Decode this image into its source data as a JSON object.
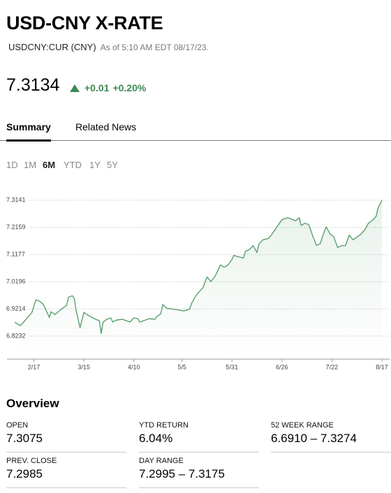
{
  "header": {
    "title": "USD-CNY X-RATE",
    "symbol": "USDCNY:CUR (CNY)",
    "as_of": "As of 5:10 AM EDT 08/17/23."
  },
  "quote": {
    "price": "7.3134",
    "change": "+0.01",
    "change_percent": "+0.20%"
  },
  "tabs": {
    "items": [
      "Summary",
      "Related News"
    ],
    "selected": "Summary"
  },
  "ranges": {
    "items": [
      "1D",
      "1M",
      "6M",
      "YTD",
      "1Y",
      "5Y"
    ],
    "selected": "6M"
  },
  "chart": {
    "type": "line",
    "color": "#5b9f6e",
    "grid": true,
    "xlim": [
      "2/3",
      "8/21"
    ],
    "xticks": [
      "2/17",
      "3/15",
      "4/10",
      "5/5",
      "5/31",
      "6/26",
      "7/22",
      "8/17"
    ],
    "ylim": [
      6.74,
      7.332
    ],
    "yticks": [
      6.8232,
      6.9214,
      7.0196,
      7.1177,
      7.2159,
      7.3141
    ],
    "x": [
      "2/7",
      "2/10",
      "2/13",
      "2/16",
      "2/18",
      "2/20",
      "2/22",
      "2/25",
      "2/26",
      "2/28",
      "3/3",
      "3/6",
      "3/7",
      "3/9",
      "3/10",
      "3/11",
      "3/12",
      "3/13",
      "3/15",
      "3/17",
      "3/21",
      "3/23",
      "3/24",
      "3/25",
      "3/27",
      "3/29",
      "3/30",
      "4/1",
      "4/4",
      "4/8",
      "4/10",
      "4/12",
      "4/13",
      "4/16",
      "4/18",
      "4/21",
      "4/22",
      "4/24",
      "4/25",
      "4/27",
      "5/2",
      "5/6",
      "5/9",
      "5/10",
      "5/12",
      "5/14",
      "5/16",
      "5/18",
      "5/20",
      "5/22",
      "5/23",
      "5/25",
      "5/27",
      "5/29",
      "5/31",
      "6/1",
      "6/3",
      "6/6",
      "6/7",
      "6/9",
      "6/11",
      "6/13",
      "6/14",
      "6/16",
      "6/19",
      "6/21",
      "6/23",
      "6/26",
      "6/29",
      "7/1",
      "7/3",
      "7/5",
      "7/6",
      "7/8",
      "7/10",
      "7/12",
      "7/14",
      "7/16",
      "7/17",
      "7/19",
      "7/21",
      "7/23",
      "7/25",
      "7/27",
      "7/29",
      "7/31",
      "8/2",
      "8/4",
      "8/6",
      "8/8",
      "8/10",
      "8/12",
      "8/14",
      "8/15",
      "8/17"
    ],
    "values": [
      6.873,
      6.861,
      6.884,
      6.909,
      6.954,
      6.949,
      6.937,
      6.891,
      6.911,
      6.901,
      6.919,
      6.934,
      6.964,
      6.969,
      6.959,
      6.916,
      6.884,
      6.853,
      6.909,
      6.899,
      6.884,
      6.879,
      6.833,
      6.874,
      6.884,
      6.889,
      6.874,
      6.881,
      6.884,
      6.874,
      6.889,
      6.886,
      6.874,
      6.881,
      6.886,
      6.884,
      6.894,
      6.904,
      6.937,
      6.924,
      6.919,
      6.914,
      6.921,
      6.941,
      6.967,
      6.984,
      6.999,
      7.037,
      7.02,
      7.037,
      7.05,
      7.08,
      7.072,
      7.08,
      7.1,
      7.115,
      7.11,
      7.105,
      7.13,
      7.135,
      7.15,
      7.125,
      7.155,
      7.171,
      7.176,
      7.193,
      7.213,
      7.244,
      7.251,
      7.246,
      7.239,
      7.251,
      7.223,
      7.231,
      7.226,
      7.186,
      7.15,
      7.158,
      7.181,
      7.218,
      7.193,
      7.181,
      7.143,
      7.15,
      7.15,
      7.188,
      7.171,
      7.181,
      7.191,
      7.206,
      7.231,
      7.241,
      7.256,
      7.286,
      7.314
    ]
  },
  "overview": {
    "title": "Overview",
    "stats": [
      {
        "label": "OPEN",
        "value": "7.3075"
      },
      {
        "label": "YTD RETURN",
        "value": "6.04%"
      },
      {
        "label": "52 WEEK RANGE",
        "value": "6.6910 – 7.3274"
      },
      {
        "label": "PREV. CLOSE",
        "value": "7.2985"
      },
      {
        "label": "DAY RANGE",
        "value": "7.2995 – 7.3175"
      }
    ]
  }
}
